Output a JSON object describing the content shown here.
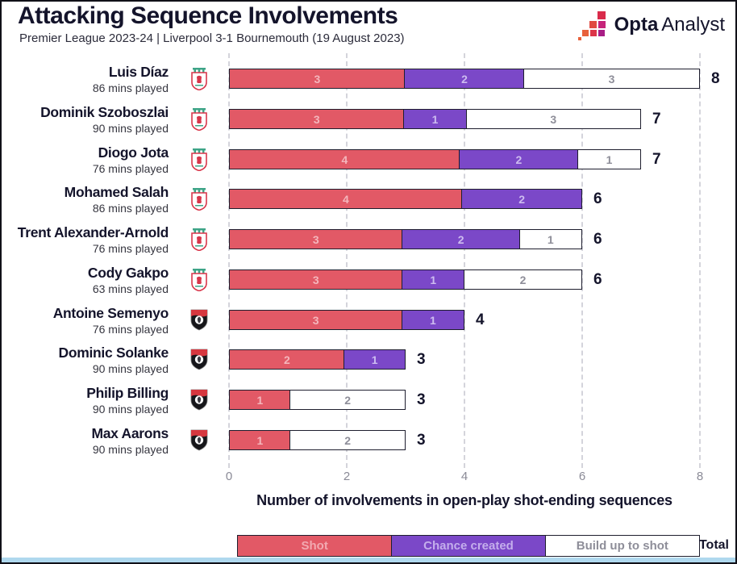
{
  "header": {
    "title": "Attacking Sequence Involvements",
    "subtitle": "Premier League 2023-24 | Liverpool 3-1 Bournemouth (19 August 2023)",
    "brand": {
      "bold": "Opta",
      "regular": "Analyst"
    }
  },
  "colors": {
    "shot": "#E25966",
    "chance_created": "#7B48C8",
    "build_up_to_shot": "#FFFFFF",
    "bar_border": "#1E1E2E",
    "title_text": "#14142B",
    "tick_text": "#8A8A96",
    "bottom_accent": "#AFD8EE",
    "liverpool_red": "#D8354A",
    "liverpool_teal": "#3EA487",
    "bournemouth_red": "#D6373F",
    "bournemouth_black": "#16161A"
  },
  "chart_data": {
    "type": "bar",
    "orientation": "horizontal",
    "stacked": true,
    "title": "Attacking Sequence Involvements",
    "xlabel": "Number of involvements in open-play shot-ending sequences",
    "xlim": [
      0,
      8
    ],
    "xticks": [
      0,
      2,
      4,
      6,
      8
    ],
    "grid": "dashed-vertical",
    "legend_position": "bottom",
    "legend": [
      "Shot",
      "Chance created",
      "Build up to shot"
    ],
    "legend_total_label": "Total",
    "series_keys": [
      "shot",
      "chance_created",
      "build_up"
    ],
    "players": [
      {
        "name": "Luis Díaz",
        "mins": "86 mins played",
        "team": "liverpool",
        "shot": 3,
        "chance_created": 2,
        "build_up": 3,
        "total": 8
      },
      {
        "name": "Dominik Szoboszlai",
        "mins": "90 mins played",
        "team": "liverpool",
        "shot": 3,
        "chance_created": 1,
        "build_up": 3,
        "total": 7
      },
      {
        "name": "Diogo Jota",
        "mins": "76 mins played",
        "team": "liverpool",
        "shot": 4,
        "chance_created": 2,
        "build_up": 1,
        "total": 7
      },
      {
        "name": "Mohamed Salah",
        "mins": "86 mins played",
        "team": "liverpool",
        "shot": 4,
        "chance_created": 2,
        "build_up": 0,
        "total": 6
      },
      {
        "name": "Trent Alexander-Arnold",
        "mins": "76 mins played",
        "team": "liverpool",
        "shot": 3,
        "chance_created": 2,
        "build_up": 1,
        "total": 6
      },
      {
        "name": "Cody Gakpo",
        "mins": "63 mins played",
        "team": "liverpool",
        "shot": 3,
        "chance_created": 1,
        "build_up": 2,
        "total": 6
      },
      {
        "name": "Antoine Semenyo",
        "mins": "76 mins played",
        "team": "bournemouth",
        "shot": 3,
        "chance_created": 1,
        "build_up": 0,
        "total": 4
      },
      {
        "name": "Dominic Solanke",
        "mins": "90 mins played",
        "team": "bournemouth",
        "shot": 2,
        "chance_created": 1,
        "build_up": 0,
        "total": 3
      },
      {
        "name": "Philip Billing",
        "mins": "90 mins played",
        "team": "bournemouth",
        "shot": 1,
        "chance_created": 0,
        "build_up": 2,
        "total": 3
      },
      {
        "name": "Max Aarons",
        "mins": "90 mins played",
        "team": "bournemouth",
        "shot": 1,
        "chance_created": 0,
        "build_up": 2,
        "total": 3
      }
    ]
  }
}
